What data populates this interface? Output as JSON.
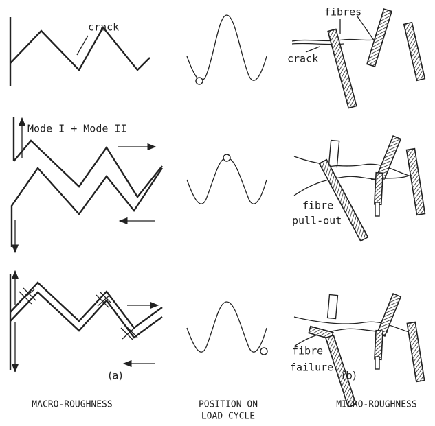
{
  "columns": {
    "macro": {
      "crack_label": "crack",
      "mode_label": "Mode I + Mode II",
      "caption": "(a)",
      "title": "MACRO-ROUGHNESS"
    },
    "load": {
      "title_lines": [
        "POSITION ON",
        "LOAD CYCLE"
      ]
    },
    "micro": {
      "fibres_label": "fibres",
      "crack_label": "crack",
      "pullout_label": [
        "fibre",
        "pull-out"
      ],
      "failure_label": [
        "fibre",
        "failure"
      ],
      "caption": "(b)",
      "title": "MICRO-ROUGHNESS"
    }
  }
}
